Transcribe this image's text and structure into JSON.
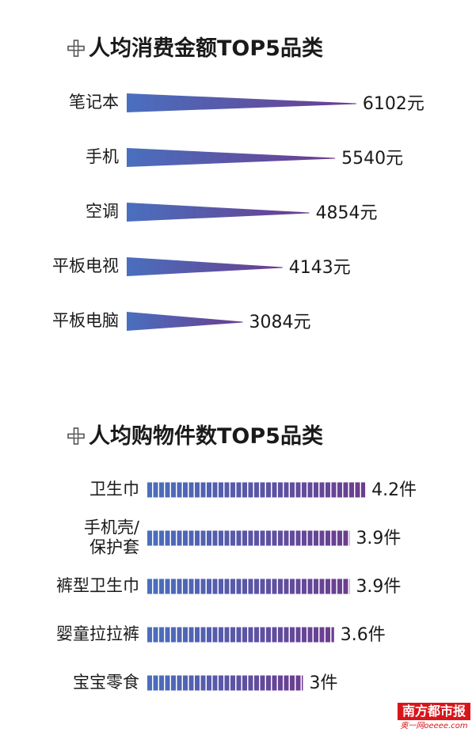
{
  "colors": {
    "bar_start": "#4a6fbe",
    "bar_end": "#6b3d8f",
    "text": "#1a1a1a",
    "brand_red": "#d9151b"
  },
  "chart_data": [
    {
      "type": "bar",
      "title": "人均消费金额TOP5品类",
      "style": "tapered-horizontal",
      "categories": [
        "笔记本",
        "手机",
        "空调",
        "平板电视",
        "平板电脑"
      ],
      "values": [
        6102,
        5540,
        4854,
        4143,
        3084
      ],
      "value_labels": [
        "6102元",
        "5540元",
        "4854元",
        "4143元",
        "3084元"
      ],
      "unit": "元"
    },
    {
      "type": "bar",
      "title": "人均购物件数TOP5品类",
      "style": "segmented-horizontal",
      "categories": [
        "卫生巾",
        "手机壳/\n保护套",
        "裤型卫生巾",
        "婴童拉拉裤",
        "宝宝零食"
      ],
      "values": [
        4.2,
        3.9,
        3.9,
        3.6,
        3
      ],
      "value_labels": [
        "4.2件",
        "3.9件",
        "3.9件",
        "3.6件",
        "3件"
      ],
      "unit": "件"
    }
  ],
  "watermark": {
    "name": "南方都市报",
    "site": "奥一网oeeee.com"
  }
}
